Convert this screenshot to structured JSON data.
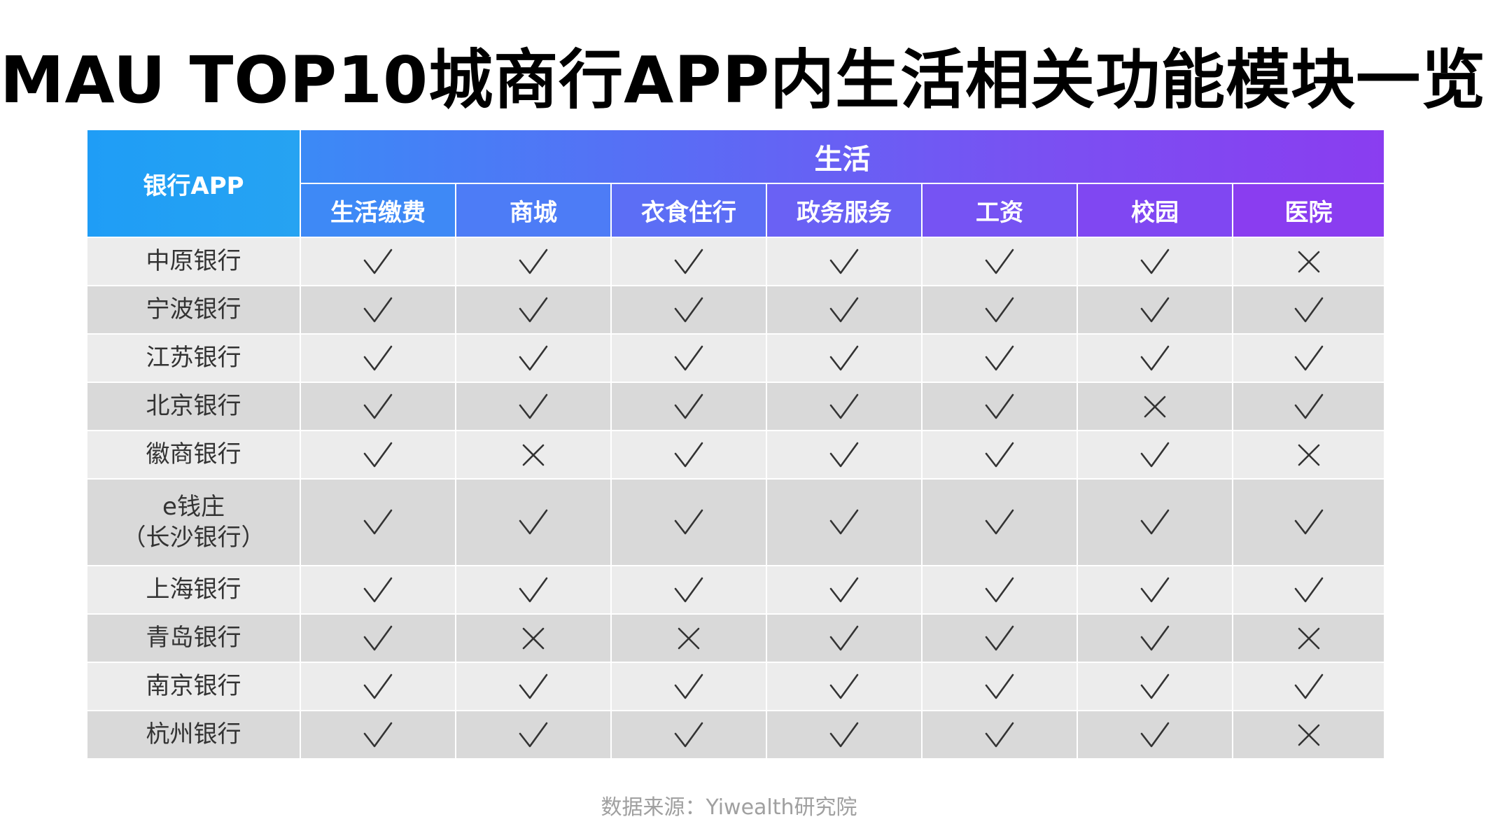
{
  "title": "MAU TOP10城商行APP内生活相关功能模块一览",
  "source": "数据来源：Yiwealth研究院",
  "colors": {
    "bank_header": "#1f9df6",
    "group_header_start": "#3b8af6",
    "group_header_end": "#8a3df0",
    "row_light": "#ececec",
    "row_dark": "#d9d9d9",
    "mark": "#333333"
  },
  "chart_data": {
    "type": "table",
    "row_header_label": "银行APP",
    "group_label": "生活",
    "columns": [
      "生活缴费",
      "商城",
      "衣食住行",
      "政务服务",
      "工资",
      "校园",
      "医院"
    ],
    "rows": [
      {
        "bank": [
          "中原银行"
        ],
        "values": [
          "√",
          "√",
          "√",
          "√",
          "√",
          "√",
          "×"
        ]
      },
      {
        "bank": [
          "宁波银行"
        ],
        "values": [
          "√",
          "√",
          "√",
          "√",
          "√",
          "√",
          "√"
        ]
      },
      {
        "bank": [
          "江苏银行"
        ],
        "values": [
          "√",
          "√",
          "√",
          "√",
          "√",
          "√",
          "√"
        ]
      },
      {
        "bank": [
          "北京银行"
        ],
        "values": [
          "√",
          "√",
          "√",
          "√",
          "√",
          "×",
          "√"
        ]
      },
      {
        "bank": [
          "徽商银行"
        ],
        "values": [
          "√",
          "×",
          "√",
          "√",
          "√",
          "√",
          "×"
        ]
      },
      {
        "bank": [
          "e钱庄",
          "（长沙银行）"
        ],
        "values": [
          "√",
          "√",
          "√",
          "√",
          "√",
          "√",
          "√"
        ]
      },
      {
        "bank": [
          "上海银行"
        ],
        "values": [
          "√",
          "√",
          "√",
          "√",
          "√",
          "√",
          "√"
        ]
      },
      {
        "bank": [
          "青岛银行"
        ],
        "values": [
          "√",
          "×",
          "×",
          "√",
          "√",
          "√",
          "×"
        ]
      },
      {
        "bank": [
          "南京银行"
        ],
        "values": [
          "√",
          "√",
          "√",
          "√",
          "√",
          "√",
          "√"
        ]
      },
      {
        "bank": [
          "杭州银行"
        ],
        "values": [
          "√",
          "√",
          "√",
          "√",
          "√",
          "√",
          "×"
        ]
      }
    ]
  }
}
